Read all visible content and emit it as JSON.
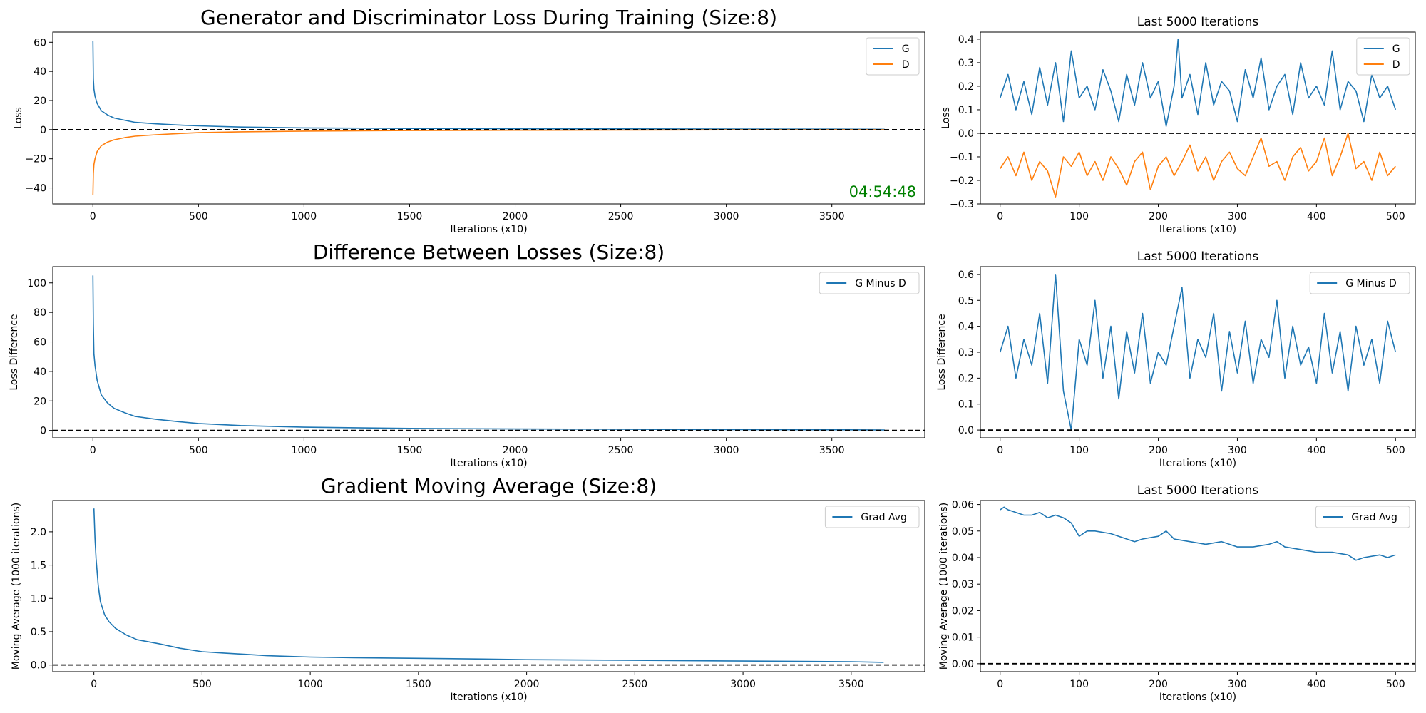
{
  "timer_text": "04:54:48",
  "colors": {
    "g": "#1f77b4",
    "d": "#ff7f0e",
    "timer": "#008000",
    "zero_line": "#000000"
  },
  "chart_data": [
    {
      "id": "loss_full",
      "type": "line",
      "title": "Generator and Discriminator Loss During Training (Size:8)",
      "title_size": "large",
      "xlabel": "Iterations (x10)",
      "ylabel": "Loss",
      "xlim": [
        -190,
        3940
      ],
      "ylim": [
        -51,
        67
      ],
      "xticks": [
        0,
        500,
        1000,
        1500,
        2000,
        2500,
        3000,
        3500
      ],
      "yticks": [
        -40,
        -20,
        0,
        20,
        40,
        60
      ],
      "ytick_labels": [
        "−40",
        "−20",
        "0",
        "20",
        "40",
        "60"
      ],
      "zero_line": true,
      "legend": "upper-right",
      "series": [
        {
          "name": "G",
          "color": "#1f77b4",
          "x": [
            0,
            2,
            5,
            10,
            20,
            40,
            70,
            100,
            150,
            200,
            300,
            400,
            500,
            700,
            1000,
            1500,
            2000,
            2500,
            3000,
            3500,
            3750
          ],
          "y": [
            61,
            35,
            28,
            23,
            18,
            13,
            10,
            8,
            6.5,
            5,
            4,
            3.2,
            2.6,
            1.8,
            1.2,
            0.8,
            0.6,
            0.5,
            0.4,
            0.3,
            0.2
          ]
        },
        {
          "name": "D",
          "color": "#ff7f0e",
          "x": [
            0,
            2,
            5,
            10,
            20,
            40,
            70,
            100,
            150,
            200,
            300,
            400,
            500,
            700,
            1000,
            1500,
            2000,
            2500,
            3000,
            3500,
            3750
          ],
          "y": [
            -45,
            -30,
            -24,
            -20,
            -15,
            -11,
            -8.5,
            -7,
            -5.5,
            -4.5,
            -3.5,
            -2.7,
            -2.1,
            -1.5,
            -1,
            -0.6,
            -0.4,
            -0.3,
            -0.2,
            -0.15,
            -0.1
          ]
        }
      ]
    },
    {
      "id": "loss_last",
      "type": "line",
      "title": "Last 5000 Iterations",
      "title_size": "small",
      "xlabel": "Iterations (x10)",
      "ylabel": "Loss",
      "xlim": [
        -25,
        525
      ],
      "ylim": [
        -0.3,
        0.43
      ],
      "xticks": [
        0,
        100,
        200,
        300,
        400,
        500
      ],
      "yticks": [
        -0.3,
        -0.2,
        -0.1,
        0.0,
        0.1,
        0.2,
        0.3,
        0.4
      ],
      "ytick_labels": [
        "−0.3",
        "−0.2",
        "−0.1",
        "0.0",
        "0.1",
        "0.2",
        "0.3",
        "0.4"
      ],
      "zero_line": true,
      "legend": "upper-right",
      "series": [
        {
          "name": "G",
          "color": "#1f77b4",
          "x": [
            0,
            10,
            20,
            30,
            40,
            50,
            60,
            70,
            80,
            90,
            100,
            110,
            120,
            130,
            140,
            150,
            160,
            170,
            180,
            190,
            200,
            210,
            220,
            225,
            230,
            240,
            250,
            260,
            270,
            280,
            290,
            300,
            310,
            320,
            330,
            340,
            350,
            360,
            370,
            380,
            390,
            400,
            410,
            420,
            430,
            440,
            450,
            460,
            470,
            480,
            490,
            500
          ],
          "y": [
            0.15,
            0.25,
            0.1,
            0.22,
            0.08,
            0.28,
            0.12,
            0.3,
            0.05,
            0.35,
            0.15,
            0.2,
            0.1,
            0.27,
            0.18,
            0.05,
            0.25,
            0.12,
            0.3,
            0.15,
            0.22,
            0.03,
            0.2,
            0.4,
            0.15,
            0.25,
            0.08,
            0.3,
            0.12,
            0.22,
            0.18,
            0.05,
            0.27,
            0.15,
            0.32,
            0.1,
            0.2,
            0.25,
            0.08,
            0.3,
            0.15,
            0.2,
            0.12,
            0.35,
            0.1,
            0.22,
            0.18,
            0.05,
            0.25,
            0.15,
            0.2,
            0.1
          ]
        },
        {
          "name": "D",
          "color": "#ff7f0e",
          "x": [
            0,
            10,
            20,
            30,
            40,
            50,
            60,
            70,
            80,
            90,
            100,
            110,
            120,
            130,
            140,
            150,
            160,
            170,
            180,
            190,
            200,
            210,
            220,
            230,
            240,
            250,
            260,
            270,
            280,
            290,
            300,
            310,
            320,
            330,
            340,
            350,
            360,
            370,
            380,
            390,
            400,
            410,
            420,
            430,
            440,
            450,
            460,
            470,
            480,
            490,
            500
          ],
          "y": [
            -0.15,
            -0.1,
            -0.18,
            -0.08,
            -0.2,
            -0.12,
            -0.16,
            -0.27,
            -0.1,
            -0.14,
            -0.08,
            -0.18,
            -0.12,
            -0.2,
            -0.1,
            -0.15,
            -0.22,
            -0.12,
            -0.08,
            -0.24,
            -0.14,
            -0.1,
            -0.18,
            -0.12,
            -0.05,
            -0.16,
            -0.1,
            -0.2,
            -0.12,
            -0.08,
            -0.15,
            -0.18,
            -0.1,
            -0.02,
            -0.14,
            -0.12,
            -0.2,
            -0.1,
            -0.06,
            -0.16,
            -0.12,
            -0.02,
            -0.18,
            -0.1,
            0.0,
            -0.15,
            -0.12,
            -0.2,
            -0.08,
            -0.18,
            -0.14
          ]
        }
      ]
    },
    {
      "id": "diff_full",
      "type": "line",
      "title": "Difference Between Losses (Size:8)",
      "title_size": "large",
      "xlabel": "Iterations (x10)",
      "ylabel": "Loss Difference",
      "xlim": [
        -190,
        3940
      ],
      "ylim": [
        -5,
        111
      ],
      "xticks": [
        0,
        500,
        1000,
        1500,
        2000,
        2500,
        3000,
        3500
      ],
      "yticks": [
        0,
        20,
        40,
        60,
        80,
        100
      ],
      "ytick_labels": [
        "0",
        "20",
        "40",
        "60",
        "80",
        "100"
      ],
      "zero_line": true,
      "legend": "upper-right",
      "series": [
        {
          "name": "G Minus D",
          "color": "#1f77b4",
          "x": [
            0,
            2,
            5,
            10,
            20,
            40,
            70,
            100,
            150,
            200,
            300,
            400,
            500,
            700,
            1000,
            1500,
            2000,
            2500,
            3000,
            3500,
            3750
          ],
          "y": [
            105,
            72,
            52,
            44,
            34,
            24,
            18.5,
            15,
            12,
            9.5,
            7.5,
            6,
            4.7,
            3.3,
            2.2,
            1.4,
            1,
            0.8,
            0.6,
            0.45,
            0.3
          ]
        }
      ]
    },
    {
      "id": "diff_last",
      "type": "line",
      "title": "Last 5000 Iterations",
      "title_size": "small",
      "xlabel": "Iterations (x10)",
      "ylabel": "Loss Difference",
      "xlim": [
        -25,
        525
      ],
      "ylim": [
        -0.03,
        0.63
      ],
      "xticks": [
        0,
        100,
        200,
        300,
        400,
        500
      ],
      "yticks": [
        0.0,
        0.1,
        0.2,
        0.3,
        0.4,
        0.5,
        0.6
      ],
      "ytick_labels": [
        "0.0",
        "0.1",
        "0.2",
        "0.3",
        "0.4",
        "0.5",
        "0.6"
      ],
      "zero_line": true,
      "legend": "upper-right",
      "series": [
        {
          "name": "G Minus D",
          "color": "#1f77b4",
          "x": [
            0,
            10,
            20,
            30,
            40,
            50,
            60,
            70,
            80,
            90,
            100,
            110,
            120,
            130,
            140,
            150,
            160,
            170,
            180,
            190,
            200,
            210,
            220,
            230,
            240,
            250,
            260,
            270,
            280,
            290,
            300,
            310,
            320,
            330,
            340,
            350,
            360,
            370,
            380,
            390,
            400,
            410,
            420,
            430,
            440,
            450,
            460,
            470,
            480,
            490,
            500
          ],
          "y": [
            0.3,
            0.4,
            0.2,
            0.35,
            0.25,
            0.45,
            0.18,
            0.6,
            0.15,
            0.0,
            0.35,
            0.25,
            0.5,
            0.2,
            0.4,
            0.12,
            0.38,
            0.22,
            0.45,
            0.18,
            0.3,
            0.25,
            0.4,
            0.55,
            0.2,
            0.35,
            0.28,
            0.45,
            0.15,
            0.38,
            0.22,
            0.42,
            0.18,
            0.35,
            0.28,
            0.5,
            0.2,
            0.4,
            0.25,
            0.32,
            0.18,
            0.45,
            0.22,
            0.38,
            0.15,
            0.4,
            0.25,
            0.35,
            0.18,
            0.42,
            0.3
          ]
        }
      ]
    },
    {
      "id": "grad_full",
      "type": "line",
      "title": "Gradient Moving Average (Size:8)",
      "title_size": "large",
      "xlabel": "Iterations (x10)",
      "ylabel": "Moving Average (1000 iterations)",
      "xlim": [
        -190,
        3840
      ],
      "ylim": [
        -0.1,
        2.47
      ],
      "xticks": [
        0,
        500,
        1000,
        1500,
        2000,
        2500,
        3000,
        3500
      ],
      "yticks": [
        0.0,
        0.5,
        1.0,
        1.5,
        2.0
      ],
      "ytick_labels": [
        "0.0",
        "0.5",
        "1.0",
        "1.5",
        "2.0"
      ],
      "zero_line": true,
      "legend": "upper-right",
      "series": [
        {
          "name": "Grad Avg",
          "color": "#1f77b4",
          "x": [
            0,
            5,
            10,
            20,
            30,
            50,
            70,
            100,
            150,
            200,
            300,
            400,
            500,
            600,
            700,
            800,
            1000,
            1200,
            1500,
            1800,
            2000,
            2500,
            3000,
            3500,
            3650
          ],
          "y": [
            2.35,
            1.9,
            1.6,
            1.2,
            0.95,
            0.75,
            0.65,
            0.55,
            0.45,
            0.38,
            0.32,
            0.25,
            0.2,
            0.18,
            0.16,
            0.14,
            0.12,
            0.11,
            0.1,
            0.09,
            0.08,
            0.07,
            0.06,
            0.05,
            0.04
          ]
        }
      ]
    },
    {
      "id": "grad_last",
      "type": "line",
      "title": "Last 5000 Iterations",
      "title_size": "small",
      "xlabel": "Iterations (x10)",
      "ylabel": "Moving Average (1000 iterations)",
      "xlim": [
        -25,
        525
      ],
      "ylim": [
        -0.003,
        0.0615
      ],
      "xticks": [
        0,
        100,
        200,
        300,
        400,
        500
      ],
      "yticks": [
        0.0,
        0.01,
        0.02,
        0.03,
        0.04,
        0.05,
        0.06
      ],
      "ytick_labels": [
        "0.00",
        "0.01",
        "0.02",
        "0.03",
        "0.04",
        "0.05",
        "0.06"
      ],
      "zero_line": true,
      "legend": "upper-right",
      "series": [
        {
          "name": "Grad Avg",
          "color": "#1f77b4",
          "x": [
            0,
            5,
            10,
            20,
            30,
            40,
            50,
            60,
            70,
            80,
            90,
            100,
            110,
            120,
            140,
            160,
            170,
            180,
            200,
            210,
            220,
            240,
            260,
            280,
            300,
            320,
            340,
            350,
            360,
            380,
            400,
            420,
            440,
            450,
            460,
            480,
            490,
            500
          ],
          "y": [
            0.058,
            0.059,
            0.058,
            0.057,
            0.056,
            0.056,
            0.057,
            0.055,
            0.056,
            0.055,
            0.053,
            0.048,
            0.05,
            0.05,
            0.049,
            0.047,
            0.046,
            0.047,
            0.048,
            0.05,
            0.047,
            0.046,
            0.045,
            0.046,
            0.044,
            0.044,
            0.045,
            0.046,
            0.044,
            0.043,
            0.042,
            0.042,
            0.041,
            0.039,
            0.04,
            0.041,
            0.04,
            0.041
          ]
        }
      ]
    }
  ]
}
